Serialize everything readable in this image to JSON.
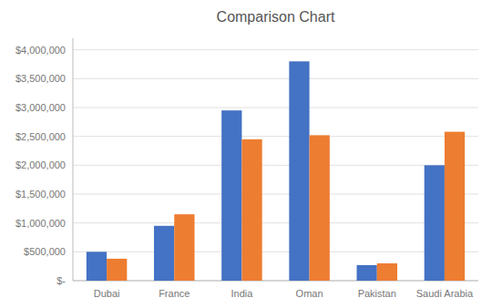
{
  "chart_data": {
    "type": "bar",
    "title": "Comparison Chart",
    "categories": [
      "Dubai",
      "France",
      "India",
      "Oman",
      "Pakistan",
      "Saudi Arabia"
    ],
    "series": [
      {
        "color": "#4472C4",
        "values": [
          500000,
          950000,
          2950000,
          3800000,
          270000,
          2000000
        ]
      },
      {
        "color": "#ED7D31",
        "values": [
          380000,
          1150000,
          2450000,
          2520000,
          300000,
          2580000
        ]
      }
    ],
    "ylim": [
      0,
      4200000
    ],
    "yticks": [
      {
        "value": 0,
        "label": "$-"
      },
      {
        "value": 500000,
        "label": "$500,000"
      },
      {
        "value": 1000000,
        "label": "$1,000,000"
      },
      {
        "value": 1500000,
        "label": "$1,500,000"
      },
      {
        "value": 2000000,
        "label": "$2,000,000"
      },
      {
        "value": 2500000,
        "label": "$2,500,000"
      },
      {
        "value": 3000000,
        "label": "$3,000,000"
      },
      {
        "value": 3500000,
        "label": "$3,500,000"
      },
      {
        "value": 4000000,
        "label": "$4,000,000"
      }
    ],
    "grid": true
  }
}
